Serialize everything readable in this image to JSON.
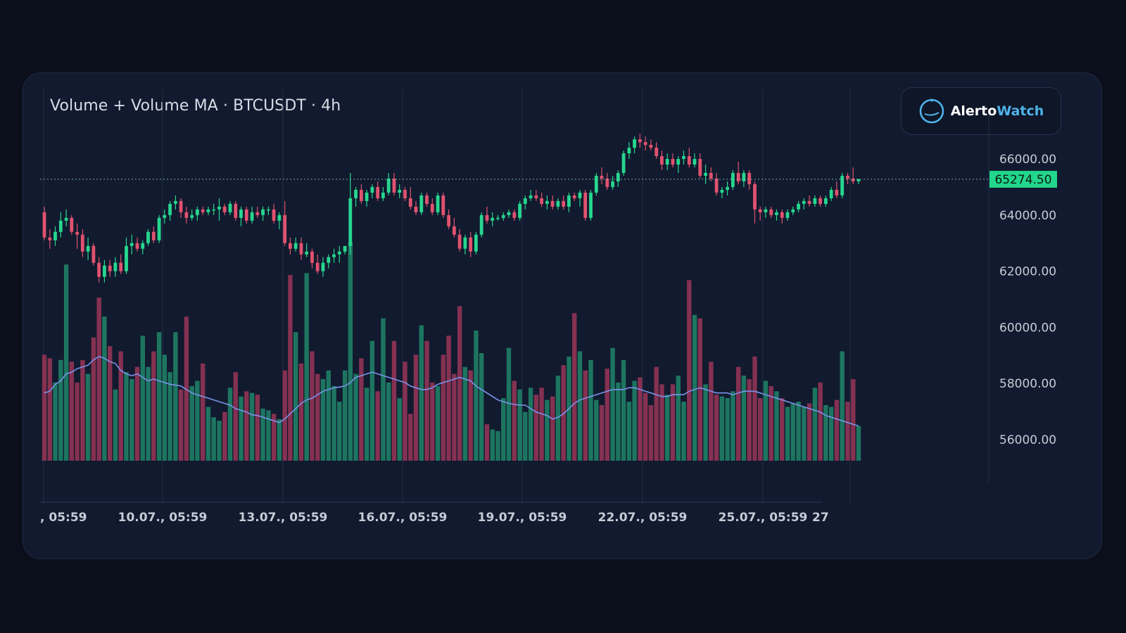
{
  "card": {
    "title": "Volume + Volume MA · BTCUSDT · 4h",
    "brand": {
      "name_part1": "Alerto",
      "name_part2": "Watch",
      "icon": "clock-logo-icon"
    }
  },
  "colors": {
    "background": "#0b0f1b",
    "panel": "#111a2e",
    "up": "#27d68f",
    "down": "#e0526f",
    "volume_up": "#1f7a63",
    "volume_down": "#8c3353",
    "ma_line": "#7b93e8",
    "grid": "#243049",
    "last_price_bg": "#22d68b",
    "accent": "#4fb3ea"
  },
  "chart_data": {
    "type": "candlestick",
    "symbol": "BTCUSDT",
    "interval": "4h",
    "price_axis": {
      "ticks": [
        "66000.00",
        "64000.00",
        "62000.00",
        "60000.00",
        "58000.00",
        "56000.00"
      ],
      "range": [
        54700,
        67000
      ]
    },
    "last_price": "65274.50",
    "time_axis": {
      "labels": [
        ", 05:59",
        "10.07., 05:59",
        "13.07., 05:59",
        "16.07., 05:59",
        "19.07., 05:59",
        "22.07., 05:59",
        "25.07., 05:59",
        "27"
      ]
    },
    "candles": [
      {
        "o": 64100,
        "h": 64300,
        "l": 63100,
        "c": 63200
      },
      {
        "o": 63200,
        "h": 63500,
        "l": 62800,
        "c": 63100
      },
      {
        "o": 63100,
        "h": 63600,
        "l": 62900,
        "c": 63400
      },
      {
        "o": 63400,
        "h": 64100,
        "l": 63200,
        "c": 63800
      },
      {
        "o": 63800,
        "h": 64200,
        "l": 63600,
        "c": 63900
      },
      {
        "o": 63900,
        "h": 64000,
        "l": 63300,
        "c": 63400
      },
      {
        "o": 63400,
        "h": 63700,
        "l": 62800,
        "c": 63300
      },
      {
        "o": 63300,
        "h": 63500,
        "l": 62500,
        "c": 62700
      },
      {
        "o": 62700,
        "h": 63200,
        "l": 62400,
        "c": 62900
      },
      {
        "o": 62900,
        "h": 63000,
        "l": 62200,
        "c": 62300
      },
      {
        "o": 62300,
        "h": 62500,
        "l": 61600,
        "c": 61800
      },
      {
        "o": 61800,
        "h": 62400,
        "l": 61600,
        "c": 62200
      },
      {
        "o": 62200,
        "h": 62400,
        "l": 61800,
        "c": 62000
      },
      {
        "o": 62000,
        "h": 62500,
        "l": 61800,
        "c": 62300
      },
      {
        "o": 62300,
        "h": 62600,
        "l": 61900,
        "c": 62000
      },
      {
        "o": 62000,
        "h": 63200,
        "l": 61900,
        "c": 62900
      },
      {
        "o": 62900,
        "h": 63300,
        "l": 62600,
        "c": 63000
      },
      {
        "o": 63000,
        "h": 63200,
        "l": 62700,
        "c": 62800
      },
      {
        "o": 62800,
        "h": 63100,
        "l": 62600,
        "c": 63000
      },
      {
        "o": 63000,
        "h": 63500,
        "l": 62900,
        "c": 63400
      },
      {
        "o": 63400,
        "h": 63600,
        "l": 63000,
        "c": 63100
      },
      {
        "o": 63100,
        "h": 64000,
        "l": 63000,
        "c": 63900
      },
      {
        "o": 63900,
        "h": 64200,
        "l": 63700,
        "c": 64000
      },
      {
        "o": 64000,
        "h": 64500,
        "l": 63800,
        "c": 64400
      },
      {
        "o": 64400,
        "h": 64700,
        "l": 64200,
        "c": 64500
      },
      {
        "o": 64500,
        "h": 64600,
        "l": 63900,
        "c": 64100
      },
      {
        "o": 64100,
        "h": 64300,
        "l": 63700,
        "c": 63900
      },
      {
        "o": 63900,
        "h": 64200,
        "l": 63800,
        "c": 64000
      },
      {
        "o": 64000,
        "h": 64300,
        "l": 63800,
        "c": 64200
      },
      {
        "o": 64200,
        "h": 64300,
        "l": 64000,
        "c": 64100
      },
      {
        "o": 64100,
        "h": 64300,
        "l": 64000,
        "c": 64200
      },
      {
        "o": 64200,
        "h": 64400,
        "l": 64000,
        "c": 64200
      },
      {
        "o": 64200,
        "h": 64600,
        "l": 63800,
        "c": 64300
      },
      {
        "o": 64300,
        "h": 64400,
        "l": 64000,
        "c": 64100
      },
      {
        "o": 64100,
        "h": 64500,
        "l": 64000,
        "c": 64400
      },
      {
        "o": 64400,
        "h": 64500,
        "l": 63800,
        "c": 63900
      },
      {
        "o": 63900,
        "h": 64300,
        "l": 63600,
        "c": 64200
      },
      {
        "o": 64200,
        "h": 64300,
        "l": 63700,
        "c": 63800
      },
      {
        "o": 63800,
        "h": 64300,
        "l": 63700,
        "c": 64100
      },
      {
        "o": 64100,
        "h": 64300,
        "l": 63900,
        "c": 64000
      },
      {
        "o": 64000,
        "h": 64300,
        "l": 63800,
        "c": 64200
      },
      {
        "o": 64200,
        "h": 64300,
        "l": 64000,
        "c": 64200
      },
      {
        "o": 64200,
        "h": 64400,
        "l": 63700,
        "c": 63800
      },
      {
        "o": 63800,
        "h": 64100,
        "l": 63500,
        "c": 64000
      },
      {
        "o": 64000,
        "h": 64500,
        "l": 62900,
        "c": 63000
      },
      {
        "o": 63000,
        "h": 63200,
        "l": 62600,
        "c": 62800
      },
      {
        "o": 62800,
        "h": 63200,
        "l": 62700,
        "c": 63000
      },
      {
        "o": 63000,
        "h": 63200,
        "l": 62400,
        "c": 62600
      },
      {
        "o": 62600,
        "h": 63000,
        "l": 62500,
        "c": 62700
      },
      {
        "o": 62700,
        "h": 62800,
        "l": 62100,
        "c": 62300
      },
      {
        "o": 62300,
        "h": 62600,
        "l": 61900,
        "c": 62000
      },
      {
        "o": 62000,
        "h": 62500,
        "l": 61800,
        "c": 62300
      },
      {
        "o": 62300,
        "h": 62600,
        "l": 62100,
        "c": 62500
      },
      {
        "o": 62500,
        "h": 62800,
        "l": 62300,
        "c": 62600
      },
      {
        "o": 62600,
        "h": 62900,
        "l": 62300,
        "c": 62700
      },
      {
        "o": 62700,
        "h": 62900,
        "l": 62600,
        "c": 62900
      },
      {
        "o": 62900,
        "h": 65500,
        "l": 62600,
        "c": 64600
      },
      {
        "o": 64600,
        "h": 65000,
        "l": 64300,
        "c": 64900
      },
      {
        "o": 64900,
        "h": 65100,
        "l": 64400,
        "c": 64500
      },
      {
        "o": 64500,
        "h": 64900,
        "l": 64300,
        "c": 64800
      },
      {
        "o": 64800,
        "h": 65100,
        "l": 64600,
        "c": 65000
      },
      {
        "o": 65000,
        "h": 65200,
        "l": 64500,
        "c": 64600
      },
      {
        "o": 64600,
        "h": 65000,
        "l": 64500,
        "c": 64800
      },
      {
        "o": 64800,
        "h": 65500,
        "l": 64700,
        "c": 65300
      },
      {
        "o": 65300,
        "h": 65500,
        "l": 64700,
        "c": 64800
      },
      {
        "o": 64800,
        "h": 65100,
        "l": 64600,
        "c": 64900
      },
      {
        "o": 64900,
        "h": 65000,
        "l": 64500,
        "c": 64600
      },
      {
        "o": 64600,
        "h": 65000,
        "l": 64200,
        "c": 64300
      },
      {
        "o": 64300,
        "h": 64500,
        "l": 64000,
        "c": 64100
      },
      {
        "o": 64100,
        "h": 64800,
        "l": 64000,
        "c": 64700
      },
      {
        "o": 64700,
        "h": 64800,
        "l": 64300,
        "c": 64400
      },
      {
        "o": 64400,
        "h": 64600,
        "l": 64000,
        "c": 64100
      },
      {
        "o": 64100,
        "h": 64800,
        "l": 64000,
        "c": 64700
      },
      {
        "o": 64700,
        "h": 64800,
        "l": 63900,
        "c": 64000
      },
      {
        "o": 64000,
        "h": 64200,
        "l": 63500,
        "c": 63600
      },
      {
        "o": 63600,
        "h": 63900,
        "l": 63200,
        "c": 63300
      },
      {
        "o": 63300,
        "h": 63500,
        "l": 62700,
        "c": 62800
      },
      {
        "o": 62800,
        "h": 63300,
        "l": 62600,
        "c": 63200
      },
      {
        "o": 63200,
        "h": 63400,
        "l": 62500,
        "c": 62700
      },
      {
        "o": 62700,
        "h": 63400,
        "l": 62600,
        "c": 63300
      },
      {
        "o": 63300,
        "h": 64100,
        "l": 63200,
        "c": 64000
      },
      {
        "o": 64000,
        "h": 64300,
        "l": 63700,
        "c": 63800
      },
      {
        "o": 63800,
        "h": 64100,
        "l": 63600,
        "c": 63900
      },
      {
        "o": 63900,
        "h": 64000,
        "l": 63800,
        "c": 63900
      },
      {
        "o": 63900,
        "h": 64100,
        "l": 63800,
        "c": 64000
      },
      {
        "o": 64000,
        "h": 64200,
        "l": 63900,
        "c": 64100
      },
      {
        "o": 64100,
        "h": 64200,
        "l": 63800,
        "c": 63900
      },
      {
        "o": 63900,
        "h": 64500,
        "l": 63800,
        "c": 64400
      },
      {
        "o": 64400,
        "h": 64700,
        "l": 64200,
        "c": 64600
      },
      {
        "o": 64600,
        "h": 64900,
        "l": 64500,
        "c": 64700
      },
      {
        "o": 64700,
        "h": 64900,
        "l": 64500,
        "c": 64600
      },
      {
        "o": 64600,
        "h": 64800,
        "l": 64300,
        "c": 64400
      },
      {
        "o": 64400,
        "h": 64700,
        "l": 64200,
        "c": 64500
      },
      {
        "o": 64500,
        "h": 64700,
        "l": 64200,
        "c": 64300
      },
      {
        "o": 64300,
        "h": 64600,
        "l": 64200,
        "c": 64500
      },
      {
        "o": 64500,
        "h": 64700,
        "l": 64200,
        "c": 64300
      },
      {
        "o": 64300,
        "h": 64800,
        "l": 64100,
        "c": 64700
      },
      {
        "o": 64700,
        "h": 64800,
        "l": 64500,
        "c": 64600
      },
      {
        "o": 64600,
        "h": 64900,
        "l": 64300,
        "c": 64800
      },
      {
        "o": 64800,
        "h": 64900,
        "l": 63800,
        "c": 63900
      },
      {
        "o": 63900,
        "h": 64900,
        "l": 63800,
        "c": 64800
      },
      {
        "o": 64800,
        "h": 65500,
        "l": 64700,
        "c": 65400
      },
      {
        "o": 65400,
        "h": 65700,
        "l": 65100,
        "c": 65300
      },
      {
        "o": 65300,
        "h": 65500,
        "l": 64900,
        "c": 65000
      },
      {
        "o": 65000,
        "h": 65400,
        "l": 64900,
        "c": 65200
      },
      {
        "o": 65200,
        "h": 65600,
        "l": 65000,
        "c": 65500
      },
      {
        "o": 65500,
        "h": 66300,
        "l": 65400,
        "c": 66200
      },
      {
        "o": 66200,
        "h": 66600,
        "l": 66000,
        "c": 66400
      },
      {
        "o": 66400,
        "h": 66800,
        "l": 66200,
        "c": 66700
      },
      {
        "o": 66700,
        "h": 66900,
        "l": 66400,
        "c": 66600
      },
      {
        "o": 66600,
        "h": 66800,
        "l": 66300,
        "c": 66500
      },
      {
        "o": 66500,
        "h": 66700,
        "l": 66300,
        "c": 66400
      },
      {
        "o": 66400,
        "h": 66600,
        "l": 66000,
        "c": 66100
      },
      {
        "o": 66100,
        "h": 66300,
        "l": 65600,
        "c": 65800
      },
      {
        "o": 65800,
        "h": 66200,
        "l": 65600,
        "c": 66000
      },
      {
        "o": 66000,
        "h": 66200,
        "l": 65700,
        "c": 65800
      },
      {
        "o": 65800,
        "h": 66100,
        "l": 65500,
        "c": 66000
      },
      {
        "o": 66000,
        "h": 66300,
        "l": 65800,
        "c": 66100
      },
      {
        "o": 66100,
        "h": 66400,
        "l": 65700,
        "c": 65800
      },
      {
        "o": 65800,
        "h": 66200,
        "l": 65700,
        "c": 66000
      },
      {
        "o": 66000,
        "h": 66200,
        "l": 65300,
        "c": 65400
      },
      {
        "o": 65400,
        "h": 65800,
        "l": 65100,
        "c": 65500
      },
      {
        "o": 65500,
        "h": 65700,
        "l": 65200,
        "c": 65300
      },
      {
        "o": 65300,
        "h": 65500,
        "l": 64700,
        "c": 64800
      },
      {
        "o": 64800,
        "h": 65000,
        "l": 64600,
        "c": 64900
      },
      {
        "o": 64900,
        "h": 65200,
        "l": 64700,
        "c": 65000
      },
      {
        "o": 65000,
        "h": 65600,
        "l": 64900,
        "c": 65500
      },
      {
        "o": 65500,
        "h": 65900,
        "l": 65100,
        "c": 65200
      },
      {
        "o": 65200,
        "h": 65600,
        "l": 65000,
        "c": 65500
      },
      {
        "o": 65500,
        "h": 65600,
        "l": 64900,
        "c": 65100
      },
      {
        "o": 65100,
        "h": 65200,
        "l": 63700,
        "c": 64200
      },
      {
        "o": 64200,
        "h": 64300,
        "l": 63800,
        "c": 64100
      },
      {
        "o": 64100,
        "h": 64300,
        "l": 63900,
        "c": 64200
      },
      {
        "o": 64200,
        "h": 64300,
        "l": 63900,
        "c": 64000
      },
      {
        "o": 64000,
        "h": 64200,
        "l": 63800,
        "c": 64100
      },
      {
        "o": 64100,
        "h": 64200,
        "l": 63700,
        "c": 63900
      },
      {
        "o": 63900,
        "h": 64200,
        "l": 63800,
        "c": 64100
      },
      {
        "o": 64100,
        "h": 64300,
        "l": 64000,
        "c": 64200
      },
      {
        "o": 64200,
        "h": 64500,
        "l": 64100,
        "c": 64400
      },
      {
        "o": 64400,
        "h": 64600,
        "l": 64200,
        "c": 64500
      },
      {
        "o": 64500,
        "h": 64700,
        "l": 64300,
        "c": 64400
      },
      {
        "o": 64400,
        "h": 64700,
        "l": 64300,
        "c": 64600
      },
      {
        "o": 64600,
        "h": 64700,
        "l": 64300,
        "c": 64400
      },
      {
        "o": 64400,
        "h": 64700,
        "l": 64300,
        "c": 64600
      },
      {
        "o": 64600,
        "h": 65000,
        "l": 64500,
        "c": 64900
      },
      {
        "o": 64900,
        "h": 65200,
        "l": 64600,
        "c": 64700
      },
      {
        "o": 64700,
        "h": 65500,
        "l": 64600,
        "c": 65400
      },
      {
        "o": 65400,
        "h": 65500,
        "l": 65100,
        "c": 65300
      },
      {
        "o": 65300,
        "h": 65700,
        "l": 65100,
        "c": 65200
      },
      {
        "o": 65200,
        "h": 65300,
        "l": 65100,
        "c": 65274.5
      }
    ],
    "volume": [
      305,
      295,
      225,
      290,
      565,
      285,
      225,
      290,
      250,
      355,
      470,
      415,
      330,
      205,
      315,
      255,
      235,
      270,
      360,
      270,
      315,
      370,
      305,
      255,
      370,
      205,
      415,
      215,
      230,
      280,
      155,
      125,
      115,
      140,
      210,
      255,
      185,
      200,
      195,
      190,
      150,
      145,
      135,
      120,
      260,
      535,
      370,
      280,
      540,
      315,
      250,
      235,
      260,
      215,
      170,
      260,
      630,
      250,
      295,
      210,
      345,
      200,
      410,
      225,
      345,
      180,
      285,
      135,
      305,
      390,
      345,
      225,
      215,
      305,
      360,
      250,
      445,
      270,
      260,
      375,
      310,
      105,
      90,
      85,
      180,
      325,
      230,
      205,
      140,
      210,
      190,
      210,
      175,
      185,
      245,
      275,
      300,
      425,
      315,
      260,
      290,
      175,
      160,
      265,
      325,
      225,
      290,
      170,
      230,
      240,
      195,
      160,
      270,
      220,
      190,
      220,
      245,
      170,
      520,
      420,
      410,
      220,
      285,
      190,
      185,
      180,
      200,
      270,
      245,
      235,
      300,
      180,
      230,
      215,
      200,
      180,
      155,
      165,
      170,
      155,
      165,
      210,
      225,
      160,
      155,
      175,
      315,
      170,
      235,
      100
    ],
    "volume_ma": [
      195,
      200,
      220,
      230,
      250,
      255,
      265,
      270,
      275,
      290,
      300,
      295,
      285,
      280,
      260,
      250,
      245,
      250,
      240,
      230,
      235,
      230,
      225,
      220,
      218,
      215,
      205,
      195,
      190,
      185,
      180,
      175,
      170,
      165,
      160,
      150,
      145,
      140,
      132,
      130,
      125,
      120,
      115,
      110,
      120,
      135,
      150,
      165,
      175,
      180,
      190,
      200,
      205,
      210,
      212,
      215,
      225,
      240,
      245,
      250,
      255,
      250,
      245,
      240,
      235,
      230,
      225,
      215,
      210,
      205,
      205,
      210,
      220,
      225,
      230,
      235,
      240,
      235,
      230,
      215,
      205,
      195,
      185,
      175,
      170,
      165,
      162,
      160,
      160,
      150,
      140,
      135,
      130,
      120,
      125,
      135,
      150,
      165,
      175,
      180,
      185,
      190,
      195,
      200,
      205,
      205,
      205,
      210,
      210,
      205,
      200,
      195,
      190,
      185,
      185,
      190,
      190,
      190,
      200,
      205,
      210,
      205,
      200,
      195,
      195,
      195,
      190,
      195,
      200,
      200,
      200,
      195,
      190,
      185,
      180,
      175,
      170,
      165,
      160,
      155,
      150,
      145,
      140,
      130,
      125,
      120,
      115,
      110,
      105,
      100
    ],
    "volume_scale_max": 700
  }
}
